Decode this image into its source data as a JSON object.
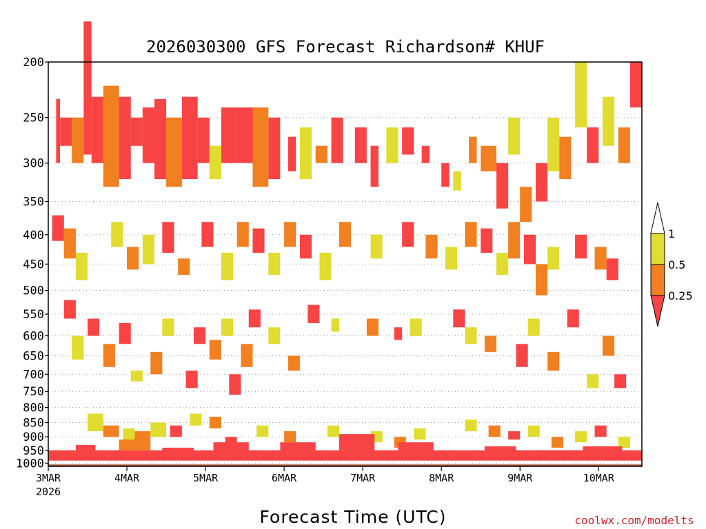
{
  "chart_data": {
    "type": "heatmap",
    "title": "2026030300 GFS Forecast Richardson# KHUF",
    "xlabel": "Forecast Time (UTC)",
    "ylabel": "",
    "credit": "coolwx.com/modelts",
    "x_start_year": "2026",
    "x_ticks": [
      "3MAR",
      "4MAR",
      "5MAR",
      "6MAR",
      "7MAR",
      "8MAR",
      "9MAR",
      "10MAR"
    ],
    "x_range_days": [
      0,
      7.55
    ],
    "y_ticks": [
      "200",
      "250",
      "300",
      "350",
      "400",
      "450",
      "500",
      "550",
      "600",
      "650",
      "700",
      "750",
      "800",
      "850",
      "900",
      "950",
      "1000"
    ],
    "y_range_hPa": [
      200,
      1013
    ],
    "colorbar": {
      "labels": [
        "1",
        "0.5",
        "0.25"
      ],
      "colors": {
        "lt_025": "#f84444",
        "025_05": "#f08020",
        "05_1": "#e0dc30",
        "above": "#ffffff"
      }
    },
    "ground_color": "#a0522d",
    "colors": [
      "#f84444",
      "#f08020",
      "#e0dc30"
    ],
    "cells": [
      [
        0.1,
        0.15,
        232,
        300,
        0
      ],
      [
        0.15,
        0.3,
        250,
        280,
        0
      ],
      [
        0.3,
        0.45,
        250,
        300,
        1
      ],
      [
        0.45,
        0.55,
        170,
        290,
        0
      ],
      [
        0.55,
        0.7,
        230,
        300,
        0
      ],
      [
        0.7,
        0.9,
        220,
        330,
        1
      ],
      [
        0.9,
        1.05,
        230,
        320,
        0
      ],
      [
        1.05,
        1.2,
        250,
        280,
        0
      ],
      [
        1.2,
        1.35,
        240,
        300,
        0
      ],
      [
        1.35,
        1.5,
        232,
        320,
        0
      ],
      [
        1.5,
        1.7,
        250,
        330,
        1
      ],
      [
        1.7,
        1.9,
        230,
        320,
        0
      ],
      [
        1.9,
        2.05,
        250,
        300,
        0
      ],
      [
        2.05,
        2.2,
        280,
        320,
        2
      ],
      [
        2.2,
        2.4,
        240,
        300,
        0
      ],
      [
        2.4,
        2.6,
        240,
        300,
        0
      ],
      [
        2.6,
        2.8,
        240,
        330,
        1
      ],
      [
        2.8,
        2.95,
        250,
        320,
        0
      ],
      [
        3.05,
        3.15,
        270,
        310,
        0
      ],
      [
        3.2,
        3.35,
        260,
        320,
        2
      ],
      [
        3.4,
        3.55,
        280,
        300,
        1
      ],
      [
        3.6,
        3.75,
        250,
        300,
        0
      ],
      [
        3.9,
        4.05,
        260,
        300,
        0
      ],
      [
        4.1,
        4.2,
        280,
        330,
        0
      ],
      [
        4.3,
        4.45,
        260,
        300,
        2
      ],
      [
        4.5,
        4.65,
        260,
        290,
        0
      ],
      [
        4.75,
        4.85,
        280,
        300,
        0
      ],
      [
        5.0,
        5.1,
        300,
        330,
        0
      ],
      [
        5.15,
        5.25,
        310,
        335,
        2
      ],
      [
        5.35,
        5.45,
        270,
        300,
        1
      ],
      [
        5.5,
        5.7,
        280,
        310,
        1
      ],
      [
        5.7,
        5.85,
        300,
        360,
        0
      ],
      [
        5.85,
        6.0,
        250,
        290,
        2
      ],
      [
        6.0,
        6.15,
        330,
        380,
        1
      ],
      [
        6.2,
        6.35,
        300,
        350,
        0
      ],
      [
        6.35,
        6.5,
        250,
        310,
        2
      ],
      [
        6.5,
        6.65,
        270,
        320,
        1
      ],
      [
        6.7,
        6.85,
        200,
        260,
        2
      ],
      [
        6.85,
        7.0,
        260,
        300,
        0
      ],
      [
        7.05,
        7.2,
        230,
        280,
        2
      ],
      [
        7.25,
        7.4,
        260,
        300,
        1
      ],
      [
        7.4,
        7.55,
        200,
        240,
        0
      ],
      [
        0.05,
        0.2,
        370,
        410,
        0
      ],
      [
        0.2,
        0.35,
        390,
        440,
        1
      ],
      [
        0.35,
        0.5,
        430,
        480,
        2
      ],
      [
        0.8,
        0.95,
        380,
        420,
        2
      ],
      [
        1.0,
        1.15,
        420,
        460,
        1
      ],
      [
        1.2,
        1.35,
        400,
        450,
        2
      ],
      [
        1.45,
        1.6,
        380,
        430,
        0
      ],
      [
        1.65,
        1.8,
        440,
        470,
        1
      ],
      [
        1.95,
        2.1,
        380,
        420,
        0
      ],
      [
        2.2,
        2.35,
        430,
        480,
        2
      ],
      [
        2.4,
        2.55,
        380,
        420,
        1
      ],
      [
        2.6,
        2.75,
        390,
        430,
        0
      ],
      [
        2.8,
        2.95,
        430,
        470,
        2
      ],
      [
        3.0,
        3.15,
        380,
        420,
        1
      ],
      [
        3.2,
        3.35,
        400,
        440,
        0
      ],
      [
        3.45,
        3.6,
        430,
        480,
        2
      ],
      [
        3.7,
        3.85,
        380,
        420,
        1
      ],
      [
        4.1,
        4.25,
        400,
        440,
        2
      ],
      [
        4.5,
        4.65,
        380,
        420,
        0
      ],
      [
        4.8,
        4.95,
        400,
        440,
        1
      ],
      [
        5.05,
        5.2,
        420,
        460,
        2
      ],
      [
        5.3,
        5.45,
        380,
        420,
        1
      ],
      [
        5.5,
        5.65,
        390,
        430,
        0
      ],
      [
        5.7,
        5.85,
        430,
        470,
        2
      ],
      [
        5.85,
        6.0,
        380,
        440,
        1
      ],
      [
        6.05,
        6.2,
        400,
        450,
        0
      ],
      [
        6.2,
        6.35,
        450,
        510,
        1
      ],
      [
        6.35,
        6.5,
        420,
        460,
        2
      ],
      [
        6.7,
        6.85,
        400,
        440,
        0
      ],
      [
        6.95,
        7.1,
        420,
        460,
        1
      ],
      [
        7.1,
        7.25,
        440,
        480,
        0
      ],
      [
        0.2,
        0.35,
        520,
        560,
        0
      ],
      [
        0.3,
        0.45,
        600,
        660,
        2
      ],
      [
        0.5,
        0.65,
        560,
        600,
        0
      ],
      [
        0.7,
        0.85,
        620,
        680,
        1
      ],
      [
        0.9,
        1.05,
        570,
        620,
        0
      ],
      [
        1.05,
        1.2,
        690,
        720,
        2
      ],
      [
        1.3,
        1.45,
        640,
        700,
        1
      ],
      [
        1.45,
        1.6,
        560,
        600,
        2
      ],
      [
        1.75,
        1.9,
        690,
        740,
        0
      ],
      [
        1.85,
        2.0,
        580,
        620,
        0
      ],
      [
        2.05,
        2.2,
        610,
        660,
        1
      ],
      [
        2.2,
        2.35,
        560,
        600,
        2
      ],
      [
        2.3,
        2.45,
        700,
        760,
        0
      ],
      [
        2.45,
        2.6,
        620,
        680,
        1
      ],
      [
        2.55,
        2.7,
        540,
        580,
        0
      ],
      [
        2.8,
        2.95,
        580,
        620,
        2
      ],
      [
        3.05,
        3.2,
        650,
        690,
        1
      ],
      [
        3.3,
        3.45,
        530,
        570,
        0
      ],
      [
        3.6,
        3.7,
        560,
        590,
        2
      ],
      [
        4.05,
        4.2,
        560,
        600,
        1
      ],
      [
        4.4,
        4.5,
        580,
        610,
        0
      ],
      [
        4.6,
        4.75,
        560,
        600,
        2
      ],
      [
        5.15,
        5.3,
        540,
        580,
        0
      ],
      [
        5.3,
        5.45,
        580,
        620,
        2
      ],
      [
        5.55,
        5.7,
        600,
        640,
        1
      ],
      [
        5.95,
        6.1,
        620,
        680,
        0
      ],
      [
        6.1,
        6.25,
        560,
        600,
        2
      ],
      [
        6.35,
        6.5,
        640,
        690,
        1
      ],
      [
        6.6,
        6.75,
        540,
        580,
        0
      ],
      [
        6.85,
        7.0,
        700,
        740,
        2
      ],
      [
        7.05,
        7.2,
        600,
        650,
        1
      ],
      [
        7.2,
        7.35,
        700,
        740,
        0
      ],
      [
        0.5,
        0.7,
        820,
        880,
        2
      ],
      [
        0.7,
        0.9,
        860,
        900,
        1
      ],
      [
        0.95,
        1.1,
        870,
        920,
        2
      ],
      [
        1.1,
        1.3,
        880,
        930,
        1
      ],
      [
        1.3,
        1.5,
        850,
        900,
        2
      ],
      [
        1.55,
        1.7,
        860,
        900,
        0
      ],
      [
        1.8,
        1.95,
        820,
        860,
        2
      ],
      [
        2.05,
        2.2,
        830,
        870,
        1
      ],
      [
        2.25,
        2.4,
        900,
        930,
        0
      ],
      [
        2.65,
        2.8,
        860,
        900,
        2
      ],
      [
        3.0,
        3.15,
        880,
        920,
        1
      ],
      [
        3.55,
        3.7,
        860,
        900,
        2
      ],
      [
        3.75,
        3.9,
        900,
        930,
        1
      ],
      [
        4.1,
        4.25,
        880,
        920,
        2
      ],
      [
        4.4,
        4.55,
        900,
        940,
        1
      ],
      [
        4.65,
        4.8,
        870,
        910,
        2
      ],
      [
        5.3,
        5.45,
        840,
        880,
        2
      ],
      [
        5.6,
        5.75,
        860,
        900,
        1
      ],
      [
        5.85,
        6.0,
        880,
        910,
        0
      ],
      [
        6.1,
        6.25,
        860,
        900,
        2
      ],
      [
        6.4,
        6.55,
        900,
        940,
        1
      ],
      [
        6.7,
        6.85,
        880,
        920,
        2
      ],
      [
        6.95,
        7.1,
        860,
        900,
        0
      ],
      [
        7.25,
        7.4,
        900,
        940,
        2
      ],
      [
        0.0,
        7.55,
        950,
        990,
        0
      ],
      [
        0.35,
        0.6,
        930,
        950,
        0
      ],
      [
        0.9,
        1.3,
        910,
        950,
        1
      ],
      [
        1.45,
        1.85,
        940,
        980,
        0
      ],
      [
        2.1,
        2.55,
        920,
        960,
        0
      ],
      [
        2.95,
        3.4,
        920,
        960,
        0
      ],
      [
        3.7,
        4.15,
        890,
        950,
        0
      ],
      [
        4.45,
        4.9,
        920,
        960,
        0
      ],
      [
        5.55,
        5.95,
        935,
        960,
        0
      ],
      [
        6.2,
        6.7,
        950,
        970,
        0
      ],
      [
        6.8,
        7.3,
        935,
        960,
        0
      ]
    ]
  }
}
